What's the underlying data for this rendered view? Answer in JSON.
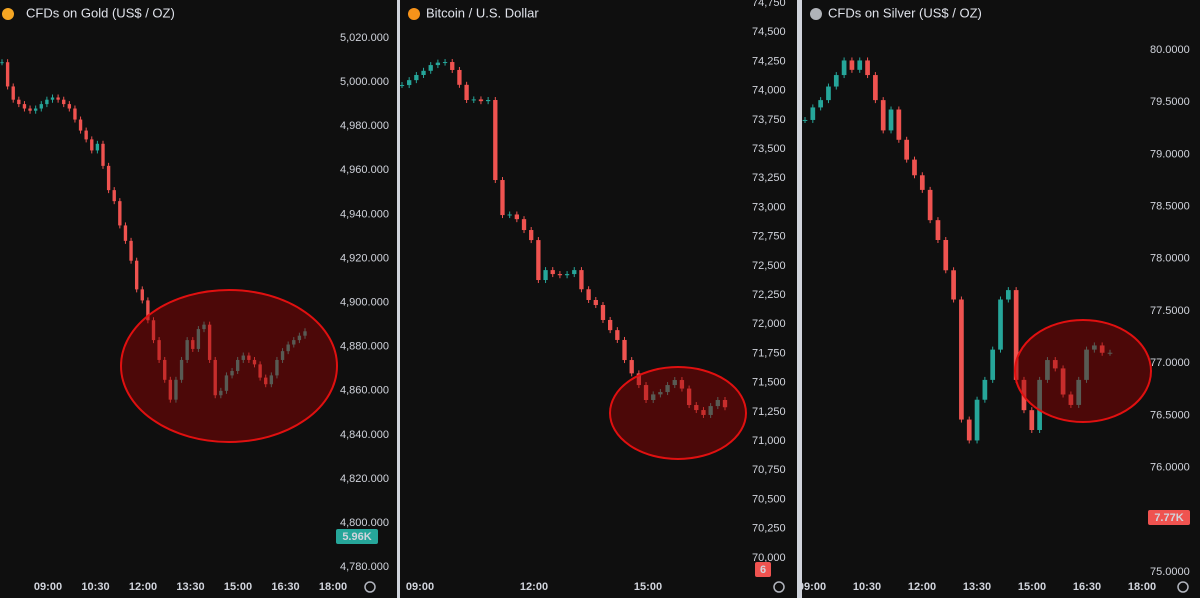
{
  "chart_data": [
    {
      "type": "candlestick",
      "title": "CFDs on Gold (US$ / OZ)",
      "up_color": "#26a69a",
      "down_color": "#ef5350",
      "values": [
        5009,
        4998,
        4992,
        4990,
        4988,
        4987,
        4988,
        4990,
        4992,
        4993,
        4992,
        4990,
        4988,
        4983,
        4978,
        4974,
        4969,
        4972,
        4962,
        4951,
        4946,
        4935,
        4928,
        4919,
        4906,
        4901,
        4892,
        4883,
        4874,
        4865,
        4856,
        4865,
        4874,
        4883,
        4879,
        4888,
        4890,
        4874,
        4858,
        4860,
        4867,
        4869,
        4874,
        4876,
        4874,
        4872,
        4866,
        4863,
        4867,
        4874,
        4878,
        4881,
        4883,
        4885,
        4887
      ],
      "ylim": [
        4776.5,
        5037.2
      ],
      "yticks": [
        {
          "value": 5020,
          "label": "5,020.000"
        },
        {
          "value": 5000,
          "label": "5,000.000"
        },
        {
          "value": 4980,
          "label": "4,980.000"
        },
        {
          "value": 4960,
          "label": "4,960.000"
        },
        {
          "value": 4940,
          "label": "4,940.000"
        },
        {
          "value": 4920,
          "label": "4,920.000"
        },
        {
          "value": 4900,
          "label": "4,900.000"
        },
        {
          "value": 4880,
          "label": "4,880.000"
        },
        {
          "value": 4860,
          "label": "4,860.000"
        },
        {
          "value": 4840,
          "label": "4,840.000"
        },
        {
          "value": 4820,
          "label": "4,820.000"
        },
        {
          "value": 4800,
          "label": "4,800.000"
        },
        {
          "value": 4780,
          "label": "4,780.000"
        }
      ],
      "time_labels": [
        "09:00",
        "10:30",
        "12:00",
        "13:30",
        "15:00",
        "16:30",
        "18:00"
      ],
      "volume_label": "5.96K",
      "volume_color": "#26a69a"
    },
    {
      "type": "candlestick",
      "title": "Bitcoin / U.S. Dollar",
      "up_color": "#26a69a",
      "down_color": "#ef5350",
      "values": [
        74048,
        74090,
        74134,
        74170,
        74219,
        74240,
        74245,
        74177,
        74050,
        73920,
        73925,
        73910,
        73920,
        73235,
        72935,
        72940,
        72900,
        72807,
        72721,
        72379,
        72464,
        72430,
        72420,
        72430,
        72464,
        72300,
        72208,
        72165,
        72037,
        71950,
        71866,
        71694,
        71580,
        71480,
        71352,
        71400,
        71420,
        71480,
        71523,
        71450,
        71309,
        71266,
        71224,
        71300,
        71352,
        71290
      ],
      "ylim": [
        69854,
        74776
      ],
      "yticks": [
        {
          "value": 74750,
          "label": "74,750"
        },
        {
          "value": 74500,
          "label": "74,500"
        },
        {
          "value": 74250,
          "label": "74,250"
        },
        {
          "value": 74000,
          "label": "74,000"
        },
        {
          "value": 73750,
          "label": "73,750"
        },
        {
          "value": 73500,
          "label": "73,500"
        },
        {
          "value": 73250,
          "label": "73,250"
        },
        {
          "value": 73000,
          "label": "73,000"
        },
        {
          "value": 72750,
          "label": "72,750"
        },
        {
          "value": 72500,
          "label": "72,500"
        },
        {
          "value": 72250,
          "label": "72,250"
        },
        {
          "value": 72000,
          "label": "72,000"
        },
        {
          "value": 71750,
          "label": "71,750"
        },
        {
          "value": 71500,
          "label": "71,500"
        },
        {
          "value": 71250,
          "label": "71,250"
        },
        {
          "value": 71000,
          "label": "71,000"
        },
        {
          "value": 70750,
          "label": "70,750"
        },
        {
          "value": 70500,
          "label": "70,500"
        },
        {
          "value": 70250,
          "label": "70,250"
        },
        {
          "value": 70000,
          "label": "70,000"
        }
      ],
      "time_labels": [
        "09:00",
        "12:00",
        "15:00"
      ],
      "volume_label": "6",
      "volume_color": "#ef5350"
    },
    {
      "type": "candlestick",
      "title": "CFDs on Silver (US$ / OZ)",
      "up_color": "#26a69a",
      "down_color": "#ef5350",
      "values": [
        79.33,
        79.45,
        79.52,
        79.65,
        79.76,
        79.9,
        79.81,
        79.9,
        79.76,
        79.52,
        79.23,
        79.43,
        79.14,
        78.95,
        78.8,
        78.66,
        78.37,
        78.18,
        77.89,
        77.61,
        76.46,
        76.26,
        76.65,
        76.84,
        77.13,
        77.61,
        77.7,
        76.84,
        76.55,
        76.36,
        76.84,
        77.03,
        76.95,
        76.7,
        76.6,
        76.84,
        77.13,
        77.17,
        77.1,
        77.1
      ],
      "ylim": [
        74.971,
        80.479
      ],
      "yticks": [
        {
          "value": 80,
          "label": "80.0000"
        },
        {
          "value": 79.5,
          "label": "79.5000"
        },
        {
          "value": 79,
          "label": "79.0000"
        },
        {
          "value": 78.5,
          "label": "78.5000"
        },
        {
          "value": 78,
          "label": "78.0000"
        },
        {
          "value": 77.5,
          "label": "77.5000"
        },
        {
          "value": 77,
          "label": "77.0000"
        },
        {
          "value": 76.5,
          "label": "76.5000"
        },
        {
          "value": 76,
          "label": "76.0000"
        },
        {
          "value": 75.5,
          "label": "75.5000"
        },
        {
          "value": 75,
          "label": "75.0000"
        }
      ],
      "time_labels": [
        "09:00",
        "10:30",
        "12:00",
        "13:30",
        "15:00",
        "16:30",
        "18:00"
      ],
      "volume_label": "7.77K",
      "volume_color": "#ef5350"
    }
  ]
}
